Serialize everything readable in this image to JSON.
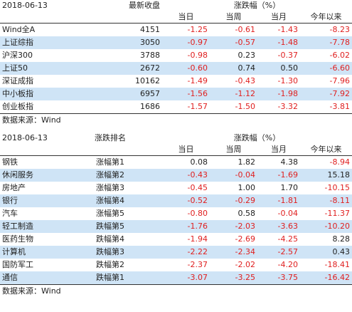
{
  "table1": {
    "date": "2018-06-13",
    "col2": "最新收盘",
    "group": "涨跌幅（%）",
    "subs": [
      "当日",
      "当周",
      "当月",
      "今年以来"
    ],
    "rows": [
      {
        "name": "Wind全A",
        "v": "4151",
        "d": "-1.25",
        "w": "-0.61",
        "m": "-1.43",
        "y": "-8.23"
      },
      {
        "name": "上证综指",
        "v": "3050",
        "d": "-0.97",
        "w": "-0.57",
        "m": "-1.48",
        "y": "-7.78"
      },
      {
        "name": "沪深300",
        "v": "3788",
        "d": "-0.98",
        "w": "0.23",
        "m": "-0.37",
        "y": "-6.02"
      },
      {
        "name": "上证50",
        "v": "2672",
        "d": "-0.60",
        "w": "0.74",
        "m": "0.50",
        "y": "-6.60"
      },
      {
        "name": "深证成指",
        "v": "10162",
        "d": "-1.49",
        "w": "-0.43",
        "m": "-1.30",
        "y": "-7.96"
      },
      {
        "name": "中小板指",
        "v": "6957",
        "d": "-1.56",
        "w": "-1.12",
        "m": "-1.98",
        "y": "-7.92"
      },
      {
        "name": "创业板指",
        "v": "1686",
        "d": "-1.57",
        "w": "-1.50",
        "m": "-3.32",
        "y": "-3.81"
      }
    ],
    "source": "数据来源：Wind"
  },
  "table2": {
    "date": "2018-06-13",
    "col2": "涨跌排名",
    "group": "涨跌幅（%）",
    "subs": [
      "当日",
      "当周",
      "当月",
      "今年以来"
    ],
    "rows": [
      {
        "name": "钢铁",
        "v": "涨幅第1",
        "d": "0.08",
        "w": "1.82",
        "m": "4.38",
        "y": "-8.94"
      },
      {
        "name": "休闲服务",
        "v": "涨幅第2",
        "d": "-0.43",
        "w": "-0.04",
        "m": "-1.69",
        "y": "15.18"
      },
      {
        "name": "房地产",
        "v": "涨幅第3",
        "d": "-0.45",
        "w": "1.00",
        "m": "1.70",
        "y": "-10.15"
      },
      {
        "name": "银行",
        "v": "涨幅第4",
        "d": "-0.52",
        "w": "-0.29",
        "m": "-1.81",
        "y": "-8.11"
      },
      {
        "name": "汽车",
        "v": "涨幅第5",
        "d": "-0.80",
        "w": "0.58",
        "m": "-0.04",
        "y": "-11.37"
      },
      {
        "name": "轻工制造",
        "v": "跌幅第5",
        "d": "-1.76",
        "w": "-2.03",
        "m": "-3.63",
        "y": "-10.20"
      },
      {
        "name": "医药生物",
        "v": "跌幅第4",
        "d": "-1.94",
        "w": "-2.69",
        "m": "-4.25",
        "y": "8.28"
      },
      {
        "name": "计算机",
        "v": "跌幅第3",
        "d": "-2.22",
        "w": "-2.34",
        "m": "-2.57",
        "y": "0.43"
      },
      {
        "name": "国防军工",
        "v": "跌幅第2",
        "d": "-2.37",
        "w": "-2.02",
        "m": "-4.20",
        "y": "-18.41"
      },
      {
        "name": "通信",
        "v": "跌幅第1",
        "d": "-3.07",
        "w": "-3.25",
        "m": "-3.75",
        "y": "-16.42"
      }
    ],
    "source": "数据来源：Wind"
  }
}
